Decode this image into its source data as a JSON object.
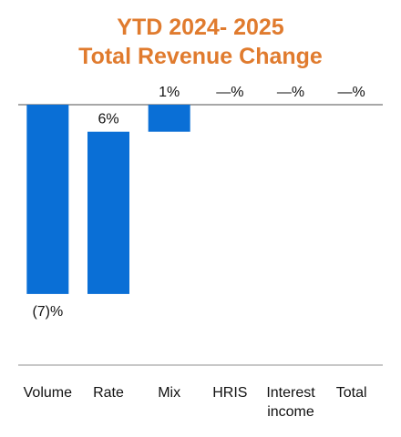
{
  "chart_data": {
    "type": "bar",
    "title_lines": [
      "YTD 2024- 2025",
      "Total Revenue Change"
    ],
    "categories": [
      [
        "Volume"
      ],
      [
        "Rate"
      ],
      [
        "Mix"
      ],
      [
        "HRIS"
      ],
      [
        "Interest",
        "income"
      ],
      [
        "Total"
      ]
    ],
    "values": [
      -7,
      6,
      1,
      0,
      0,
      0
    ],
    "data_labels": [
      "(7)%",
      "6%",
      "1%",
      "—%",
      "—%",
      "—%"
    ],
    "bar_color": "#0A6FD6",
    "title_color": "#E07B2E",
    "axis_color": "#8A8A8A",
    "ylim": [
      -7.5,
      1
    ]
  }
}
